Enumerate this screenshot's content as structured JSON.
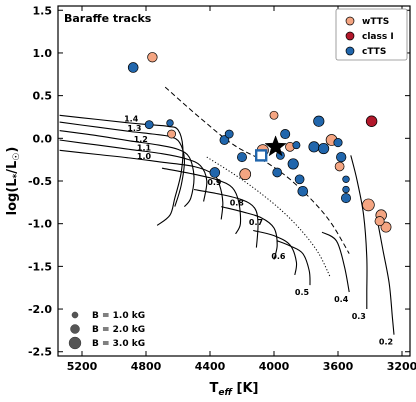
{
  "chart_data": {
    "type": "scatter",
    "title": "Baraffe tracks",
    "xlabel": "T_eff [K]",
    "ylabel": "log(L*/L☉)",
    "xlim": [
      5350,
      3150
    ],
    "ylim": [
      -2.55,
      1.55
    ],
    "x_inverted": true,
    "xticks": [
      5200,
      4800,
      4400,
      4000,
      3600,
      3200
    ],
    "yticks": [
      1.5,
      1.0,
      0.5,
      0.0,
      -0.5,
      -1.0,
      -1.5,
      -2.0,
      -2.5
    ],
    "legend": {
      "placement": "top-right",
      "entries": [
        {
          "name": "wTTS",
          "color": "#F4A582"
        },
        {
          "name": "class I",
          "color": "#B2182B"
        },
        {
          "name": "cTTS",
          "color": "#2166AC"
        }
      ]
    },
    "size_legend": {
      "placement": "bottom-left",
      "entries": [
        {
          "label": "B = 1.0 kG",
          "B": 1.0
        },
        {
          "label": "B = 2.0 kG",
          "B": 2.0
        },
        {
          "label": "B = 3.0 kG",
          "B": 3.0
        }
      ]
    },
    "tracks": [
      {
        "mass_label": "1.4",
        "points": [
          [
            5340,
            0.27
          ],
          [
            5100,
            0.22
          ],
          [
            4900,
            0.18
          ],
          [
            4780,
            0.16
          ],
          [
            4660,
            0.14
          ],
          [
            4600,
            0.1
          ],
          [
            4570,
            -0.1
          ],
          [
            4580,
            -0.4
          ],
          [
            4620,
            -0.7
          ],
          [
            4650,
            -0.9
          ],
          [
            4730,
            -1.02
          ]
        ]
      },
      {
        "mass_label": "1.3",
        "points": [
          [
            5340,
            0.19
          ],
          [
            5100,
            0.13
          ],
          [
            4900,
            0.08
          ],
          [
            4760,
            0.05
          ],
          [
            4650,
            0.02
          ],
          [
            4590,
            -0.05
          ],
          [
            4560,
            -0.25
          ],
          [
            4580,
            -0.55
          ],
          [
            4620,
            -0.8
          ]
        ]
      },
      {
        "mass_label": "1.2",
        "points": [
          [
            5340,
            0.09
          ],
          [
            5100,
            0.03
          ],
          [
            4900,
            -0.03
          ],
          [
            4720,
            -0.08
          ],
          [
            4600,
            -0.13
          ],
          [
            4530,
            -0.22
          ],
          [
            4500,
            -0.45
          ],
          [
            4520,
            -0.7
          ],
          [
            4560,
            -0.8
          ]
        ]
      },
      {
        "mass_label": "1.1",
        "points": [
          [
            5340,
            -0.02
          ],
          [
            5100,
            -0.08
          ],
          [
            4900,
            -0.13
          ],
          [
            4700,
            -0.18
          ],
          [
            4550,
            -0.24
          ],
          [
            4460,
            -0.32
          ],
          [
            4420,
            -0.5
          ],
          [
            4440,
            -0.74
          ]
        ]
      },
      {
        "mass_label": "1.0",
        "points": [
          [
            5340,
            -0.14
          ],
          [
            5100,
            -0.19
          ],
          [
            4900,
            -0.23
          ],
          [
            4700,
            -0.28
          ],
          [
            4500,
            -0.33
          ],
          [
            4380,
            -0.42
          ],
          [
            4340,
            -0.55
          ],
          [
            4320,
            -0.75
          ],
          [
            4330,
            -0.95
          ]
        ]
      },
      {
        "mass_label": "0.9",
        "points": [
          [
            4700,
            -0.35
          ],
          [
            4500,
            -0.42
          ],
          [
            4350,
            -0.49
          ],
          [
            4260,
            -0.58
          ],
          [
            4220,
            -0.75
          ],
          [
            4210,
            -1.0
          ],
          [
            4240,
            -1.12
          ]
        ]
      },
      {
        "mass_label": "0.8",
        "points": [
          [
            4500,
            -0.6
          ],
          [
            4350,
            -0.65
          ],
          [
            4200,
            -0.72
          ],
          [
            4120,
            -0.82
          ],
          [
            4100,
            -1.0
          ],
          [
            4110,
            -1.28
          ]
        ]
      },
      {
        "mass_label": "0.7",
        "points": [
          [
            4330,
            -0.8
          ],
          [
            4200,
            -0.86
          ],
          [
            4080,
            -0.93
          ],
          [
            4000,
            -1.05
          ],
          [
            3980,
            -1.25
          ],
          [
            4000,
            -1.42
          ]
        ]
      },
      {
        "mass_label": "0.6",
        "points": [
          [
            4130,
            -1.08
          ],
          [
            4000,
            -1.14
          ],
          [
            3900,
            -1.25
          ],
          [
            3860,
            -1.45
          ],
          [
            3870,
            -1.6
          ]
        ]
      },
      {
        "mass_label": "0.5",
        "points": [
          [
            3980,
            -1.2
          ],
          [
            3900,
            -1.26
          ],
          [
            3820,
            -1.35
          ],
          [
            3780,
            -1.55
          ],
          [
            3775,
            -1.72
          ]
        ]
      },
      {
        "mass_label": "0.4",
        "points": [
          [
            3700,
            -1.1
          ],
          [
            3610,
            -1.2
          ],
          [
            3560,
            -1.5
          ],
          [
            3530,
            -1.8
          ]
        ]
      },
      {
        "mass_label": "0.3",
        "points": [
          [
            3520,
            -0.2
          ],
          [
            3480,
            -0.5
          ],
          [
            3440,
            -0.9
          ],
          [
            3420,
            -1.4
          ],
          [
            3420,
            -1.8
          ],
          [
            3420,
            -2.0
          ]
        ]
      },
      {
        "mass_label": "0.2",
        "points": [
          [
            3360,
            -0.9
          ],
          [
            3320,
            -1.3
          ],
          [
            3280,
            -1.7
          ],
          [
            3260,
            -2.1
          ],
          [
            3250,
            -2.3
          ]
        ]
      }
    ],
    "dashed_isochrone": [
      [
        4680,
        0.6
      ],
      [
        4450,
        0.22
      ],
      [
        4250,
        -0.08
      ],
      [
        4050,
        -0.28
      ],
      [
        3900,
        -0.48
      ],
      [
        3750,
        -0.75
      ],
      [
        3640,
        -1.0
      ],
      [
        3530,
        -1.35
      ]
    ],
    "dotted_isochrone": [
      [
        4420,
        -0.22
      ],
      [
        4250,
        -0.42
      ],
      [
        4100,
        -0.62
      ],
      [
        3950,
        -0.85
      ],
      [
        3820,
        -1.1
      ],
      [
        3720,
        -1.35
      ],
      [
        3650,
        -1.62
      ]
    ],
    "stars": [
      {
        "class": "cTTS",
        "teff": 4880,
        "logL": 0.83,
        "B": 2.3
      },
      {
        "class": "wTTS",
        "teff": 4760,
        "logL": 0.95,
        "B": 2.2
      },
      {
        "class": "cTTS",
        "teff": 4780,
        "logL": 0.16,
        "B": 1.7
      },
      {
        "class": "cTTS",
        "teff": 4650,
        "logL": 0.18,
        "B": 1.2
      },
      {
        "class": "wTTS",
        "teff": 4640,
        "logL": 0.05,
        "B": 1.7
      },
      {
        "class": "cTTS",
        "teff": 4370,
        "logL": -0.4,
        "B": 2.3
      },
      {
        "class": "cTTS",
        "teff": 4310,
        "logL": -0.02,
        "B": 2.0
      },
      {
        "class": "cTTS",
        "teff": 4280,
        "logL": 0.05,
        "B": 1.7
      },
      {
        "class": "wTTS",
        "teff": 4180,
        "logL": -0.42,
        "B": 2.7
      },
      {
        "class": "cTTS",
        "teff": 4200,
        "logL": -0.22,
        "B": 2.1
      },
      {
        "class": "wTTS",
        "teff": 4070,
        "logL": -0.14,
        "B": 2.8
      },
      {
        "class": "wTTS",
        "teff": 4000,
        "logL": 0.27,
        "B": 1.7
      },
      {
        "class": "cTTS",
        "teff": 3930,
        "logL": 0.05,
        "B": 2.1
      },
      {
        "class": "cTTS",
        "teff": 3960,
        "logL": -0.2,
        "B": 1.7
      },
      {
        "class": "cTTS",
        "teff": 3980,
        "logL": -0.4,
        "B": 2.0
      },
      {
        "class": "wTTS",
        "teff": 3900,
        "logL": -0.1,
        "B": 2.0
      },
      {
        "class": "cTTS",
        "teff": 3860,
        "logL": -0.08,
        "B": 1.4
      },
      {
        "class": "cTTS",
        "teff": 3880,
        "logL": -0.3,
        "B": 2.5
      },
      {
        "class": "cTTS",
        "teff": 3840,
        "logL": -0.48,
        "B": 2.0
      },
      {
        "class": "cTTS",
        "teff": 3820,
        "logL": -0.62,
        "B": 2.3
      },
      {
        "class": "cTTS",
        "teff": 3750,
        "logL": -0.1,
        "B": 2.5
      },
      {
        "class": "cTTS",
        "teff": 3720,
        "logL": 0.2,
        "B": 2.5
      },
      {
        "class": "cTTS",
        "teff": 3690,
        "logL": -0.12,
        "B": 2.5
      },
      {
        "class": "wTTS",
        "teff": 3640,
        "logL": -0.02,
        "B": 2.7
      },
      {
        "class": "cTTS",
        "teff": 3600,
        "logL": -0.05,
        "B": 1.8
      },
      {
        "class": "cTTS",
        "teff": 3580,
        "logL": -0.22,
        "B": 2.2
      },
      {
        "class": "wTTS",
        "teff": 3590,
        "logL": -0.33,
        "B": 2.0
      },
      {
        "class": "cTTS",
        "teff": 3550,
        "logL": -0.48,
        "B": 1.2
      },
      {
        "class": "cTTS",
        "teff": 3550,
        "logL": -0.6,
        "B": 1.2
      },
      {
        "class": "cTTS",
        "teff": 3550,
        "logL": -0.7,
        "B": 2.1
      },
      {
        "class": "wTTS",
        "teff": 3410,
        "logL": -0.78,
        "B": 3.0
      },
      {
        "class": "class I",
        "teff": 3390,
        "logL": 0.2,
        "B": 2.6
      },
      {
        "class": "wTTS",
        "teff": 3330,
        "logL": -0.9,
        "B": 2.6
      },
      {
        "class": "wTTS",
        "teff": 3340,
        "logL": -0.97,
        "B": 2.1
      },
      {
        "class": "wTTS",
        "teff": 3300,
        "logL": -1.04,
        "B": 2.4
      }
    ],
    "special_markers": [
      {
        "name": "open-square",
        "teff": 4080,
        "logL": -0.2,
        "color": "#2166AC"
      },
      {
        "name": "black-star",
        "teff": 3990,
        "logL": -0.1,
        "color": "#000000"
      }
    ]
  }
}
